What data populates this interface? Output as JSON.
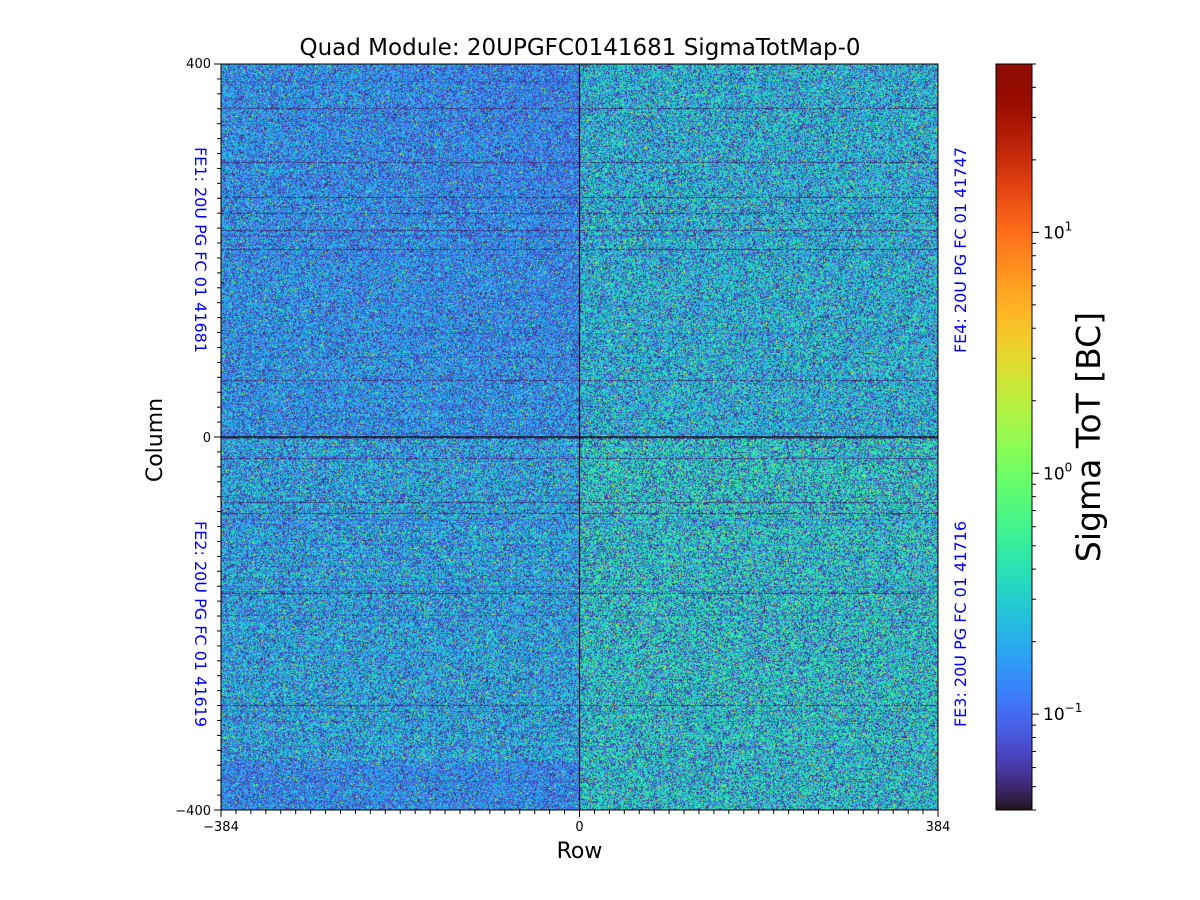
{
  "chart_data": {
    "type": "heatmap",
    "title": "Quad Module: 20UPGFC0141681 SigmaTotMap-0",
    "xlabel": "Row",
    "ylabel": "Column",
    "xlim": [
      -384,
      384
    ],
    "ylim": [
      -400,
      400
    ],
    "x_ticks": [
      {
        "value": -384,
        "label": "−384"
      },
      {
        "value": 0,
        "label": "0"
      },
      {
        "value": 384,
        "label": "384"
      }
    ],
    "y_ticks": [
      {
        "value": 400,
        "label": "400"
      },
      {
        "value": 0,
        "label": "0"
      },
      {
        "value": -400,
        "label": "−400"
      }
    ],
    "colorbar": {
      "label": "Sigma ToT [BC]",
      "scale": "log",
      "colormap": "turbo",
      "range": [
        0.04,
        50
      ],
      "ticks": [
        {
          "value": 10,
          "base": "10",
          "exp": "1"
        },
        {
          "value": 1,
          "base": "10",
          "exp": "0"
        },
        {
          "value": 0.1,
          "base": "10",
          "exp": "−1"
        }
      ]
    },
    "quadrants": [
      {
        "name": "FE1",
        "label": "FE1: 20U PG FC 01 41681",
        "position": "top-left",
        "typical_sigma": 0.2
      },
      {
        "name": "FE2",
        "label": "FE2: 20U PG FC 01 41619",
        "position": "bottom-left",
        "typical_sigma": 0.25
      },
      {
        "name": "FE3",
        "label": "FE3: 20U PG FC 01 41716",
        "position": "bottom-right",
        "typical_sigma": 0.35
      },
      {
        "name": "FE4",
        "label": "FE4: 20U PG FC 01 41747",
        "position": "top-right",
        "typical_sigma": 0.3
      }
    ],
    "label_color": "#0000ff"
  }
}
